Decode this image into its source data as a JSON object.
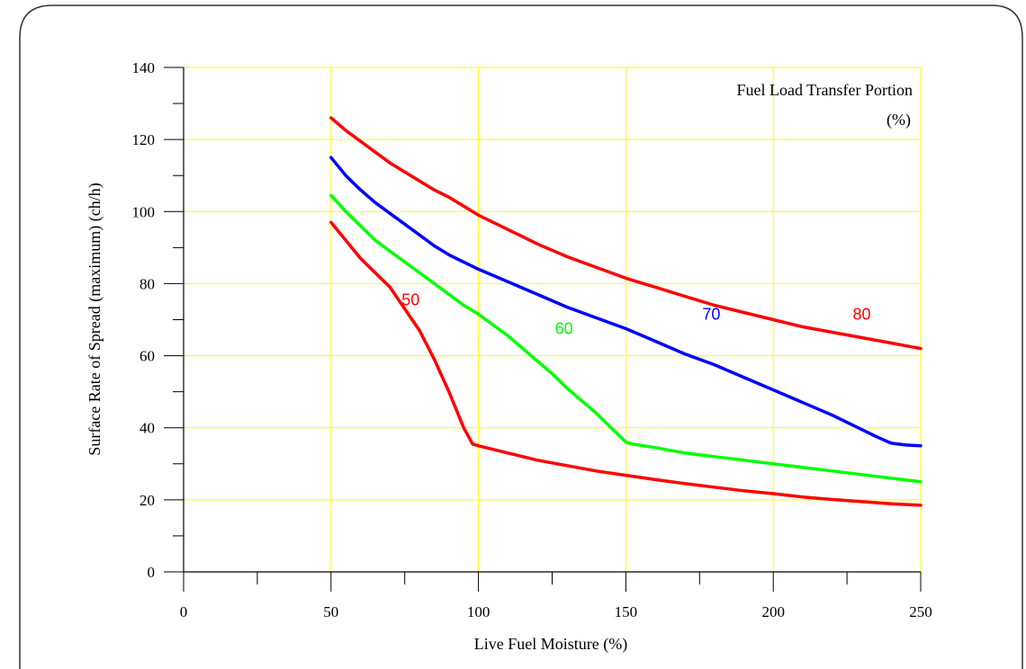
{
  "chart_data": {
    "type": "line",
    "title": "",
    "xlabel": "Live Fuel Moisture (%)",
    "ylabel": "Surface Rate of Spread (maximum) (ch/h)",
    "xlim": [
      0,
      250
    ],
    "ylim": [
      0,
      140
    ],
    "x_ticks": [
      0,
      50,
      100,
      150,
      200,
      250
    ],
    "y_ticks": [
      0,
      20,
      40,
      60,
      80,
      100,
      120,
      140
    ],
    "x_tick_labels": [
      "0",
      "50",
      "100",
      "150",
      "200",
      "250"
    ],
    "y_tick_labels": [
      "0",
      "20",
      "40",
      "60",
      "80",
      "100",
      "120",
      "140"
    ],
    "grid": true,
    "grid_color": "#ffff00",
    "legend": {
      "title_line1": "Fuel Load Transfer Portion",
      "title_line2": "(%)",
      "placement": "top-right"
    },
    "series": [
      {
        "name": "50",
        "color": "#ff0000",
        "label_at": [
          77,
          74
        ],
        "points": [
          [
            50,
            97
          ],
          [
            55,
            92
          ],
          [
            60,
            87
          ],
          [
            65,
            83
          ],
          [
            70,
            79
          ],
          [
            75,
            73
          ],
          [
            80,
            67
          ],
          [
            85,
            59
          ],
          [
            90,
            50
          ],
          [
            95,
            40
          ],
          [
            98,
            35.5
          ],
          [
            100,
            35
          ],
          [
            110,
            33
          ],
          [
            120,
            31
          ],
          [
            130,
            29.5
          ],
          [
            140,
            28
          ],
          [
            150,
            26.8
          ],
          [
            160,
            25.6
          ],
          [
            170,
            24.5
          ],
          [
            180,
            23.5
          ],
          [
            190,
            22.5
          ],
          [
            200,
            21.7
          ],
          [
            210,
            20.8
          ],
          [
            220,
            20.1
          ],
          [
            230,
            19.5
          ],
          [
            240,
            18.9
          ],
          [
            250,
            18.5
          ]
        ]
      },
      {
        "name": "60",
        "color": "#00ff00",
        "label_at": [
          129,
          66
        ],
        "points": [
          [
            50,
            104.5
          ],
          [
            55,
            100
          ],
          [
            60,
            96
          ],
          [
            65,
            92
          ],
          [
            70,
            89
          ],
          [
            75,
            86
          ],
          [
            80,
            83
          ],
          [
            85,
            80
          ],
          [
            90,
            77
          ],
          [
            95,
            74
          ],
          [
            100,
            71.5
          ],
          [
            105,
            68.5
          ],
          [
            110,
            65.5
          ],
          [
            115,
            62
          ],
          [
            120,
            58.5
          ],
          [
            125,
            55
          ],
          [
            130,
            51
          ],
          [
            135,
            47.5
          ],
          [
            140,
            44
          ],
          [
            145,
            40
          ],
          [
            150,
            36
          ],
          [
            152,
            35.5
          ],
          [
            160,
            34.5
          ],
          [
            170,
            33
          ],
          [
            180,
            32
          ],
          [
            190,
            31
          ],
          [
            200,
            30
          ],
          [
            210,
            29
          ],
          [
            220,
            28
          ],
          [
            230,
            27
          ],
          [
            240,
            26
          ],
          [
            250,
            25
          ]
        ]
      },
      {
        "name": "70",
        "color": "#0000ff",
        "label_at": [
          179,
          70
        ],
        "points": [
          [
            50,
            115
          ],
          [
            55,
            110
          ],
          [
            60,
            106
          ],
          [
            65,
            102.5
          ],
          [
            70,
            99.5
          ],
          [
            75,
            96.5
          ],
          [
            80,
            93.5
          ],
          [
            85,
            90.5
          ],
          [
            90,
            88
          ],
          [
            95,
            86
          ],
          [
            100,
            84
          ],
          [
            110,
            80.5
          ],
          [
            120,
            77
          ],
          [
            130,
            73.5
          ],
          [
            140,
            70.5
          ],
          [
            150,
            67.5
          ],
          [
            160,
            64
          ],
          [
            170,
            60.5
          ],
          [
            180,
            57.5
          ],
          [
            190,
            54
          ],
          [
            200,
            50.5
          ],
          [
            210,
            47
          ],
          [
            220,
            43.5
          ],
          [
            230,
            39.5
          ],
          [
            235,
            37.5
          ],
          [
            240,
            35.7
          ],
          [
            245,
            35.2
          ],
          [
            250,
            35
          ]
        ]
      },
      {
        "name": "80",
        "color": "#ff0000",
        "label_at": [
          230,
          70
        ],
        "points": [
          [
            50,
            126
          ],
          [
            55,
            122.5
          ],
          [
            60,
            119.5
          ],
          [
            65,
            116.5
          ],
          [
            70,
            113.5
          ],
          [
            75,
            111
          ],
          [
            80,
            108.5
          ],
          [
            85,
            106
          ],
          [
            90,
            104
          ],
          [
            95,
            101.5
          ],
          [
            100,
            99
          ],
          [
            110,
            95
          ],
          [
            120,
            91
          ],
          [
            130,
            87.5
          ],
          [
            140,
            84.5
          ],
          [
            150,
            81.5
          ],
          [
            160,
            79
          ],
          [
            170,
            76.5
          ],
          [
            180,
            74
          ],
          [
            190,
            72
          ],
          [
            200,
            70
          ],
          [
            210,
            68
          ],
          [
            220,
            66.5
          ],
          [
            230,
            65
          ],
          [
            240,
            63.5
          ],
          [
            250,
            62
          ]
        ]
      }
    ]
  }
}
